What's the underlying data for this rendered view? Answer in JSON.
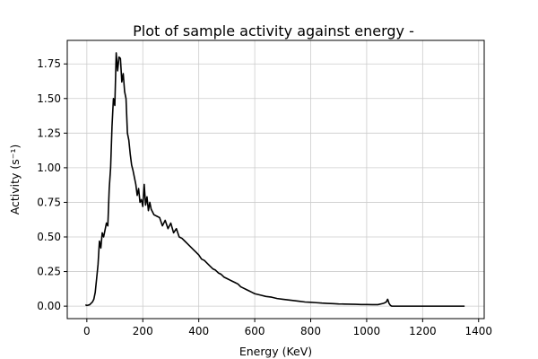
{
  "chart_data": {
    "type": "line",
    "title": "Plot of sample activity against energy -",
    "xlabel": "Energy (KeV)",
    "ylabel": "Activity (s⁻¹)",
    "xlim": [
      -70,
      1420
    ],
    "ylim": [
      -0.09,
      1.92
    ],
    "grid": true,
    "x_ticks": [
      "0",
      "200",
      "400",
      "600",
      "800",
      "1000",
      "1200",
      "1400"
    ],
    "y_ticks": [
      "0.00",
      "0.25",
      "0.50",
      "0.75",
      "1.00",
      "1.25",
      "1.50",
      "1.75"
    ],
    "line_color": "#000000",
    "series": [
      {
        "x": [
          -5,
          0,
          10,
          20,
          25,
          30,
          35,
          40,
          45,
          50,
          55,
          60,
          65,
          70,
          75,
          80,
          85,
          90,
          95,
          100,
          105,
          110,
          115,
          120,
          125,
          130,
          135,
          140,
          145,
          150,
          155,
          160,
          165,
          170,
          175,
          180,
          185,
          190,
          195,
          200,
          205,
          210,
          215,
          220,
          225,
          230,
          240,
          250,
          260,
          270,
          280,
          290,
          300,
          310,
          320,
          330,
          340,
          350,
          360,
          370,
          380,
          390,
          400,
          410,
          420,
          430,
          440,
          450,
          460,
          470,
          480,
          490,
          500,
          510,
          520,
          530,
          540,
          550,
          560,
          570,
          580,
          590,
          600,
          620,
          640,
          660,
          680,
          700,
          720,
          740,
          760,
          780,
          800,
          820,
          840,
          860,
          880,
          900,
          920,
          940,
          960,
          980,
          1000,
          1020,
          1040,
          1060,
          1070,
          1075,
          1080,
          1085,
          1090,
          1100,
          1150,
          1200,
          1250,
          1300,
          1350
        ],
        "y": [
          0.01,
          0.005,
          0.01,
          0.03,
          0.05,
          0.1,
          0.2,
          0.3,
          0.47,
          0.42,
          0.53,
          0.5,
          0.55,
          0.6,
          0.58,
          0.85,
          1.0,
          1.3,
          1.5,
          1.45,
          1.83,
          1.7,
          1.8,
          1.79,
          1.62,
          1.68,
          1.55,
          1.5,
          1.25,
          1.2,
          1.1,
          1.02,
          0.98,
          0.93,
          0.88,
          0.8,
          0.85,
          0.75,
          0.77,
          0.72,
          0.88,
          0.73,
          0.79,
          0.69,
          0.75,
          0.7,
          0.66,
          0.65,
          0.64,
          0.58,
          0.62,
          0.56,
          0.6,
          0.53,
          0.56,
          0.5,
          0.49,
          0.47,
          0.45,
          0.43,
          0.41,
          0.39,
          0.37,
          0.34,
          0.33,
          0.31,
          0.29,
          0.27,
          0.26,
          0.24,
          0.23,
          0.21,
          0.2,
          0.19,
          0.18,
          0.17,
          0.16,
          0.14,
          0.13,
          0.12,
          0.11,
          0.1,
          0.09,
          0.08,
          0.07,
          0.065,
          0.055,
          0.05,
          0.045,
          0.04,
          0.035,
          0.03,
          0.028,
          0.025,
          0.022,
          0.02,
          0.018,
          0.016,
          0.015,
          0.014,
          0.013,
          0.012,
          0.012,
          0.011,
          0.011,
          0.02,
          0.03,
          0.05,
          0.02,
          0.005,
          0.0,
          0.0,
          0.0,
          0.0,
          0.0,
          0.0,
          0.0
        ]
      }
    ]
  }
}
